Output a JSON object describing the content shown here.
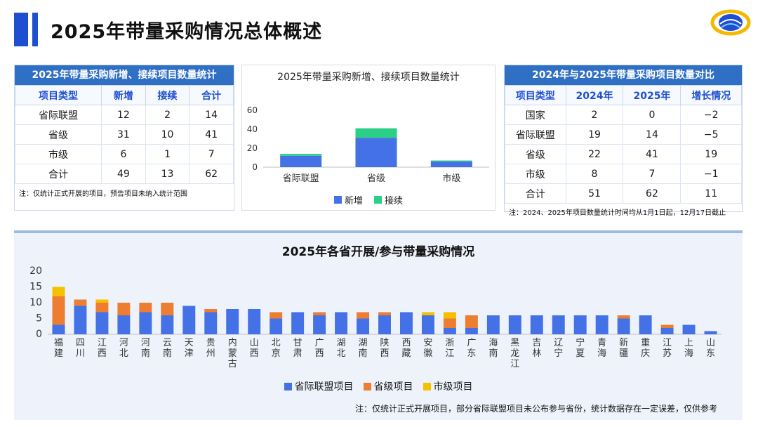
{
  "page": {
    "title": "2025年带量采购情况总体概述",
    "colors": {
      "accent": "#1f4fd1",
      "header": "#2f6fc4",
      "blue": "#4472e6",
      "orange": "#ed7d31",
      "yellow": "#f5c000",
      "green": "#2bcf86"
    }
  },
  "left_table": {
    "header": "2025年带量采购新增、接续项目数量统计",
    "columns": [
      "项目类型",
      "新增",
      "接续",
      "合计"
    ],
    "rows": [
      [
        "省际联盟",
        "12",
        "2",
        "14"
      ],
      [
        "省级",
        "31",
        "10",
        "41"
      ],
      [
        "市级",
        "6",
        "1",
        "7"
      ],
      [
        "合计",
        "49",
        "13",
        "62"
      ]
    ],
    "note": "注：仅统计正式开展的项目，预告项目未纳入统计范围"
  },
  "right_table": {
    "header": "2024年与2025年带量采购项目数量对比",
    "columns": [
      "项目类型",
      "2024年",
      "2025年",
      "增长情况"
    ],
    "rows": [
      [
        "国家",
        "2",
        "0",
        "−2"
      ],
      [
        "省际联盟",
        "19",
        "14",
        "−5"
      ],
      [
        "省级",
        "22",
        "41",
        "19"
      ],
      [
        "市级",
        "8",
        "7",
        "−1"
      ],
      [
        "合计",
        "51",
        "62",
        "11"
      ]
    ],
    "note": "注：2024、2025年项目数量统计时间均从1月1日起，12月17日截止"
  },
  "chart_data": [
    {
      "type": "bar",
      "stacked": true,
      "title": "2025年带量采购新增、接续项目数量统计",
      "categories": [
        "省际联盟",
        "省级",
        "市级"
      ],
      "series": [
        {
          "name": "新增",
          "values": [
            12,
            31,
            6
          ],
          "color": "#4472e6"
        },
        {
          "name": "接续",
          "values": [
            2,
            10,
            1
          ],
          "color": "#2bcf86"
        }
      ],
      "ylim": [
        0,
        60
      ],
      "yticks": [
        0,
        20,
        40,
        60
      ],
      "legend": "bottom",
      "grid": false
    },
    {
      "type": "bar",
      "stacked": true,
      "title": "2025年各省开展/参与带量采购情况",
      "categories": [
        "福建",
        "四川",
        "江西",
        "河北",
        "河南",
        "云南",
        "天津",
        "贵州",
        "内蒙古",
        "山西",
        "北京",
        "甘肃",
        "广西",
        "湖北",
        "湖南",
        "陕西",
        "西藏",
        "安徽",
        "浙江",
        "广东",
        "海南",
        "黑龙江",
        "吉林",
        "辽宁",
        "宁夏",
        "青海",
        "新疆",
        "重庆",
        "江苏",
        "上海",
        "山东"
      ],
      "series": [
        {
          "name": "省际联盟项目",
          "values": [
            3,
            9,
            7,
            6,
            7,
            6,
            9,
            7,
            8,
            8,
            5,
            7,
            6,
            7,
            5,
            6,
            7,
            6,
            2,
            2,
            6,
            6,
            6,
            6,
            6,
            6,
            5,
            6,
            2,
            3,
            1
          ],
          "color": "#4472e6"
        },
        {
          "name": "省级项目",
          "values": [
            9,
            2,
            3,
            4,
            3,
            4,
            0,
            1,
            0,
            0,
            2,
            0,
            1,
            0,
            2,
            1,
            0,
            0,
            3,
            4,
            0,
            0,
            0,
            0,
            0,
            0,
            1,
            0,
            1,
            0,
            0
          ],
          "color": "#ed7d31"
        },
        {
          "name": "市级项目",
          "values": [
            3,
            0,
            1,
            0,
            0,
            0,
            0,
            0,
            0,
            0,
            0,
            0,
            0,
            0,
            0,
            0,
            0,
            1,
            2,
            0,
            0,
            0,
            0,
            0,
            0,
            0,
            0,
            0,
            0,
            0,
            0
          ],
          "color": "#f5c000"
        }
      ],
      "ylim": [
        0,
        20
      ],
      "yticks": [
        0,
        5,
        10,
        15,
        20
      ],
      "legend": "bottom",
      "grid": false
    }
  ],
  "bottom": {
    "note": "注：仅统计正式开展项目，部分省际联盟项目未公布参与省份，统计数据存在一定误差，仅供参考"
  }
}
